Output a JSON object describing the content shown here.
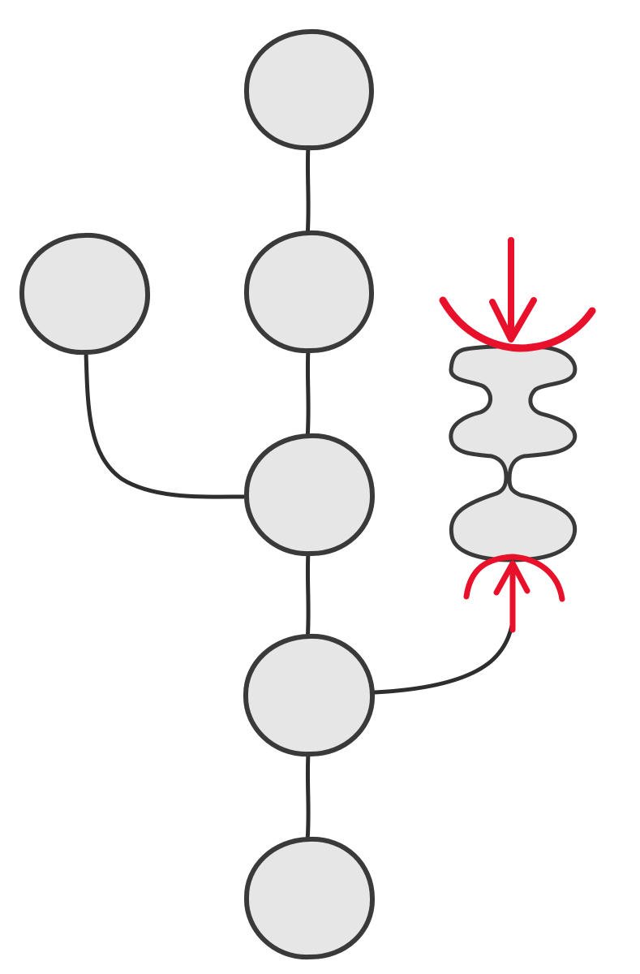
{
  "diagram": {
    "type": "commit-graph-squash-illustration",
    "commits": [
      {
        "id": "top",
        "branch": "main"
      },
      {
        "id": "main-2",
        "branch": "main"
      },
      {
        "id": "side-branch-tip",
        "branch": "side"
      },
      {
        "id": "merge",
        "branch": "main"
      },
      {
        "id": "branch-point",
        "branch": "main"
      },
      {
        "id": "root",
        "branch": "main"
      }
    ],
    "edges": [
      {
        "from": "top",
        "to": "main-2"
      },
      {
        "from": "main-2",
        "to": "merge"
      },
      {
        "from": "side-branch-tip",
        "to": "merge"
      },
      {
        "from": "merge",
        "to": "branch-point"
      },
      {
        "from": "branch-point",
        "to": "root"
      },
      {
        "from": "branch-point",
        "to": "squashed-group"
      }
    ],
    "squashed_group": {
      "id": "squashed-group",
      "lobe_count": 3,
      "compression_indicators": [
        "top-arrow-down",
        "bottom-arrow-up"
      ]
    },
    "colors": {
      "node_fill": "#e6e6e6",
      "node_stroke": "#3a3a3a",
      "edge": "#2e2e2e",
      "accent_red": "#e8102a",
      "background": "#ffffff"
    }
  }
}
